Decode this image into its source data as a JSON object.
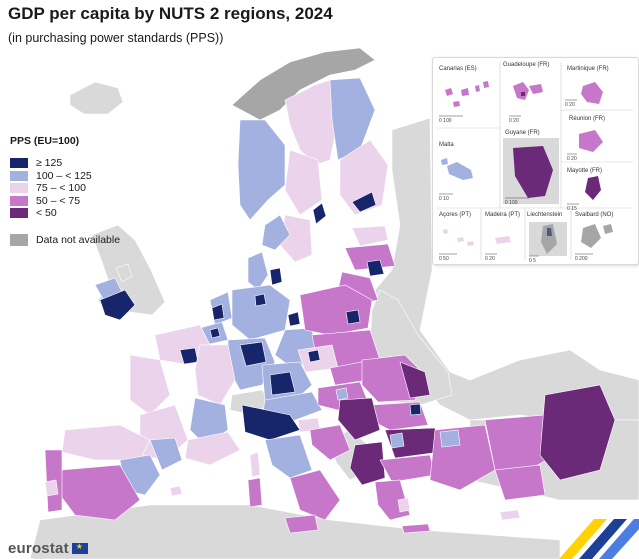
{
  "title": "GDP per capita by NUTS 2 regions, 2024",
  "subtitle": "(in purchasing power standards (PPS))",
  "legend": {
    "title": "PPS (EU=100)",
    "classes": [
      {
        "label": "≥ 125",
        "color": "#17256b"
      },
      {
        "label": "100 – < 125",
        "color": "#a2b1e0"
      },
      {
        "label": "75 – < 100",
        "color": "#ecd3ec"
      },
      {
        "label": "50 – < 75",
        "color": "#c677c9"
      },
      {
        "label": "< 50",
        "color": "#6b2a78"
      }
    ],
    "not_available": {
      "label": "Data not available",
      "color": "#a6a6a6"
    }
  },
  "insets": {
    "canarias": {
      "label": "Canarias (ES)",
      "scale": "0   100"
    },
    "guadeloupe": {
      "label": "Guadeloupe (FR)",
      "scale": "0   20"
    },
    "martinique": {
      "label": "Martinique (FR)",
      "scale": "0   20"
    },
    "reunion": {
      "label": "Réunion (FR)",
      "scale": "0   20"
    },
    "guyane": {
      "label": "Guyane (FR)",
      "scale": "0   100"
    },
    "mayotte": {
      "label": "Mayotte (FR)",
      "scale": "0   15"
    },
    "malta": {
      "label": "Malta",
      "scale": "0   10"
    },
    "acores": {
      "label": "Açores (PT)",
      "scale": "0   50"
    },
    "madeira": {
      "label": "Madeira (PT)",
      "scale": "0   20"
    },
    "liechtenstein": {
      "label": "Liechtenstein",
      "scale": "0   5"
    },
    "svalbard": {
      "label": "Svalbard (NO)",
      "scale": "0   200"
    }
  },
  "branding": {
    "logo": "eurostat"
  },
  "colors": {
    "sea": "#ffffff",
    "non_eu": "#d9d9d9",
    "border": "#ffffff"
  }
}
